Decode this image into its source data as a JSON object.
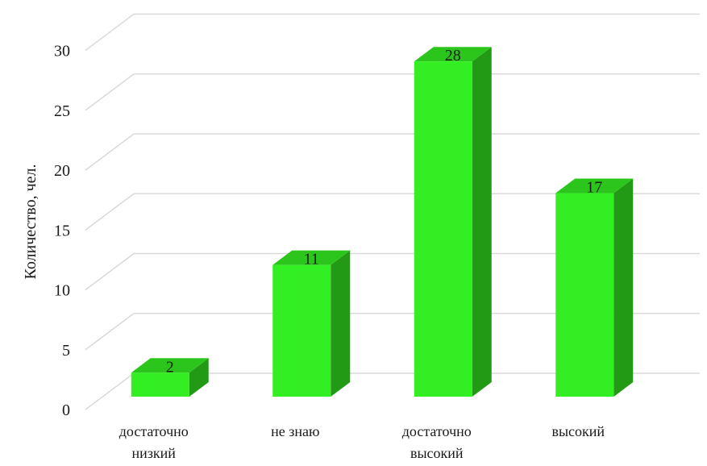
{
  "chart_data": {
    "type": "bar",
    "title": "",
    "xlabel": "",
    "ylabel": "Количество, чел.",
    "ylim": [
      0,
      30
    ],
    "ytick_step": 5,
    "yticks": [
      "0",
      "5",
      "10",
      "15",
      "20",
      "25",
      "30"
    ],
    "grid": true,
    "style": "3d-column",
    "categories": [
      [
        "достаточно",
        "низкий"
      ],
      [
        "не знаю"
      ],
      [
        "достаточно",
        "высокий"
      ],
      [
        "высокий"
      ]
    ],
    "values": [
      2,
      11,
      28,
      17
    ],
    "data_labels": [
      "2",
      "11",
      "28",
      "17"
    ],
    "colors": {
      "bar_front": "#33ee22",
      "bar_top": "#2cc51c",
      "bar_side": "#229a15",
      "grid": "#d9d9d9",
      "text": "#1a1a1a"
    }
  }
}
